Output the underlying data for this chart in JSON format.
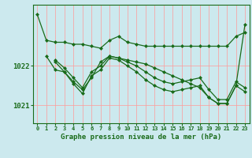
{
  "title": "Graphe pression niveau de la mer (hPa)",
  "bg_color": "#cce9ee",
  "grid_color": "#ff9999",
  "line_color": "#1a6b1a",
  "x_ticks": [
    0,
    1,
    2,
    3,
    4,
    5,
    6,
    7,
    8,
    9,
    10,
    11,
    12,
    13,
    14,
    15,
    16,
    17,
    18,
    19,
    20,
    21,
    22,
    23
  ],
  "y_ticks": [
    1021,
    1022
  ],
  "ylim": [
    1020.55,
    1023.55
  ],
  "xlim": [
    -0.5,
    23.5
  ],
  "lines": [
    {
      "x": [
        0,
        1,
        2,
        3,
        4,
        5,
        6,
        7,
        8,
        9,
        10,
        11,
        12,
        13,
        14,
        15,
        16,
        17,
        18,
        19,
        20,
        21,
        22,
        23
      ],
      "y": [
        1023.3,
        1022.65,
        1022.6,
        1022.6,
        1022.55,
        1022.55,
        1022.5,
        1022.45,
        1022.65,
        1022.75,
        1022.6,
        1022.55,
        1022.5,
        1022.5,
        1022.5,
        1022.5,
        1022.5,
        1022.5,
        1022.5,
        1022.5,
        1022.5,
        1022.5,
        1022.75,
        1022.85
      ]
    },
    {
      "x": [
        1,
        2,
        3,
        4,
        5,
        6,
        7,
        8,
        9,
        10,
        11,
        12,
        13,
        14,
        15,
        16,
        17,
        18,
        19,
        20,
        21,
        22,
        23
      ],
      "y": [
        1022.25,
        1021.9,
        1021.85,
        1021.6,
        1021.4,
        1021.7,
        1022.1,
        1022.25,
        1022.2,
        1022.15,
        1022.1,
        1022.05,
        1021.95,
        1021.85,
        1021.75,
        1021.65,
        1021.55,
        1021.45,
        1021.2,
        1021.05,
        1021.05,
        1021.5,
        1023.05
      ]
    },
    {
      "x": [
        2,
        3,
        4,
        5,
        6,
        7,
        8,
        9,
        10,
        11,
        12,
        13,
        14,
        15,
        16,
        17,
        18,
        19,
        20,
        21,
        22,
        23
      ],
      "y": [
        1022.1,
        1021.85,
        1021.55,
        1021.3,
        1021.75,
        1021.9,
        1022.2,
        1022.15,
        1022.0,
        1021.85,
        1021.65,
        1021.5,
        1021.4,
        1021.35,
        1021.4,
        1021.45,
        1021.5,
        1021.2,
        1021.05,
        1021.05,
        1021.5,
        1021.35
      ]
    },
    {
      "x": [
        2,
        3,
        4,
        5,
        6,
        7,
        8,
        9,
        10,
        11,
        12,
        13,
        14,
        15,
        16,
        17,
        18,
        19,
        20,
        21,
        22,
        23
      ],
      "y": [
        1022.15,
        1021.95,
        1021.7,
        1021.45,
        1021.85,
        1022.0,
        1022.25,
        1022.2,
        1022.1,
        1022.0,
        1021.85,
        1021.7,
        1021.6,
        1021.55,
        1021.6,
        1021.65,
        1021.7,
        1021.4,
        1021.15,
        1021.15,
        1021.6,
        1021.45
      ]
    }
  ]
}
